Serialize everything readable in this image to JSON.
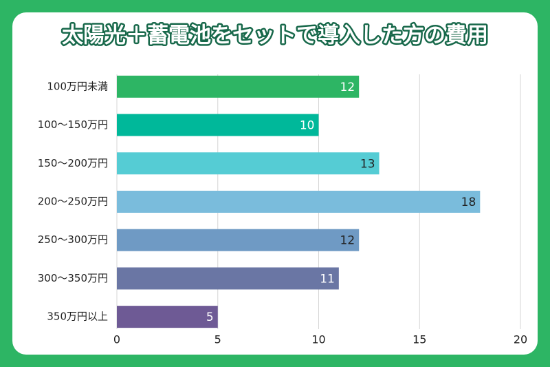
{
  "chart_data": {
    "type": "bar",
    "orientation": "horizontal",
    "title": "太陽光＋蓄電池をセットで導入した方の費用",
    "categories": [
      "100万円未満",
      "100〜150万円",
      "150〜200万円",
      "200〜250万円",
      "250〜300万円",
      "300〜350万円",
      "350万円以上"
    ],
    "values": [
      12,
      10,
      13,
      18,
      12,
      11,
      5
    ],
    "colors": [
      "#2db564",
      "#00b89a",
      "#55ccd4",
      "#7abcdc",
      "#6f9ac4",
      "#6a76a4",
      "#6e5a95"
    ],
    "xlim": [
      0,
      20
    ],
    "xticks": [
      0,
      5,
      10,
      15,
      20
    ],
    "grid": true
  }
}
